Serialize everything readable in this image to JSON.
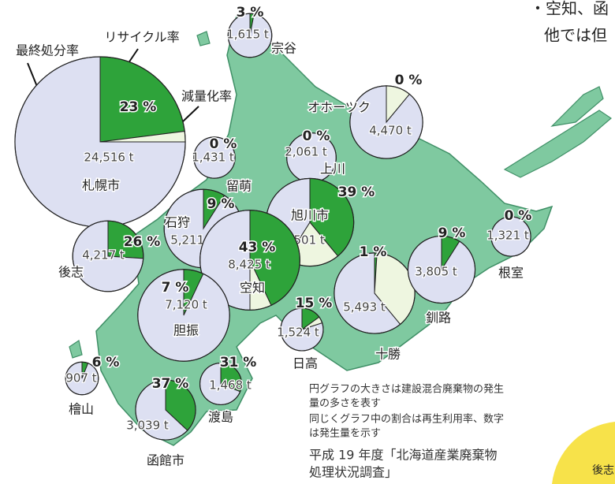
{
  "legend": {
    "final_disposal": "最終処分率",
    "recycling": "リサイクル率",
    "reduction": "減量化率"
  },
  "regions": [
    {
      "name": "宗谷",
      "amount": 1615,
      "amount_label": "1,615 t",
      "recycling_rate": 3,
      "recycling_label": "3 %",
      "reduction_rate": 0,
      "disposal_rate": 97
    },
    {
      "name": "札幌市",
      "amount": 24516,
      "amount_label": "24,516 t",
      "recycling_rate": 23,
      "recycling_label": "23 %",
      "reduction_rate": 2,
      "disposal_rate": 75
    },
    {
      "name": "留萌",
      "amount": 1431,
      "amount_label": "1,431 t",
      "recycling_rate": 0,
      "recycling_label": "0 %",
      "reduction_rate": 0,
      "disposal_rate": 100
    },
    {
      "name": "オホーツク",
      "amount": 4470,
      "amount_label": "4,470 t",
      "recycling_rate": 0,
      "recycling_label": "0 %",
      "reduction_rate": 11,
      "disposal_rate": 89
    },
    {
      "name": "上川",
      "amount": 2061,
      "amount_label": "2,061 t",
      "recycling_rate": 0,
      "recycling_label": "0 %",
      "reduction_rate": 0,
      "disposal_rate": 100
    },
    {
      "name": "旭川市",
      "amount": 6501,
      "amount_label": "6,501 t",
      "recycling_rate": 39,
      "recycling_label": "39 %",
      "reduction_rate": 20,
      "disposal_rate": 41
    },
    {
      "name": "石狩",
      "amount": 5211,
      "amount_label": "5,211 t",
      "recycling_rate": 9,
      "recycling_label": "9 %",
      "reduction_rate": 0,
      "disposal_rate": 91
    },
    {
      "name": "空知",
      "amount": 8425,
      "amount_label": "8,425 t",
      "recycling_rate": 43,
      "recycling_label": "43 %",
      "reduction_rate": 7,
      "disposal_rate": 50
    },
    {
      "name": "後志",
      "amount": 4217,
      "amount_label": "4,217 t",
      "recycling_rate": 26,
      "recycling_label": "26 %",
      "reduction_rate": 0,
      "disposal_rate": 74
    },
    {
      "name": "胆振",
      "amount": 7120,
      "amount_label": "7,120 t",
      "recycling_rate": 7,
      "recycling_label": "7 %",
      "reduction_rate": 0,
      "disposal_rate": 93
    },
    {
      "name": "日高",
      "amount": 1524,
      "amount_label": "1,524 t",
      "recycling_rate": 15,
      "recycling_label": "15 %",
      "reduction_rate": 5,
      "disposal_rate": 80
    },
    {
      "name": "十勝",
      "amount": 5493,
      "amount_label": "5,493 t",
      "recycling_rate": 1,
      "recycling_label": "1 %",
      "reduction_rate": 38,
      "disposal_rate": 61
    },
    {
      "name": "釧路",
      "amount": 3805,
      "amount_label": "3,805 t",
      "recycling_rate": 9,
      "recycling_label": "9 %",
      "reduction_rate": 0,
      "disposal_rate": 91
    },
    {
      "name": "根室",
      "amount": 1321,
      "amount_label": "1,321 t",
      "recycling_rate": 0,
      "recycling_label": "0 %",
      "reduction_rate": 0,
      "disposal_rate": 100
    },
    {
      "name": "檜山",
      "amount": 907,
      "amount_label": "907 t",
      "recycling_rate": 6,
      "recycling_label": "6 %",
      "reduction_rate": 0,
      "disposal_rate": 94
    },
    {
      "name": "渡島",
      "amount": 1468,
      "amount_label": "1,468 t",
      "recycling_rate": 31,
      "recycling_label": "31 %",
      "reduction_rate": 0,
      "disposal_rate": 69
    },
    {
      "name": "函館市",
      "amount": 3039,
      "amount_label": "3,039 t",
      "recycling_rate": 37,
      "recycling_label": "37 %",
      "reduction_rate": 0,
      "disposal_rate": 63
    }
  ],
  "notes": [
    "円グラフの大きさは建設混合廃棄物の発生",
    "量の多さを表す",
    "同じくグラフ中の割合は再生利用率、数字",
    "は発生量を示す"
  ],
  "source": [
    "平成 19 年度「北海道産業廃棄物",
    "処理状況調査」"
  ],
  "side_text": [
    "・空知、函",
    "他では但"
  ],
  "corner_text": "後志"
}
